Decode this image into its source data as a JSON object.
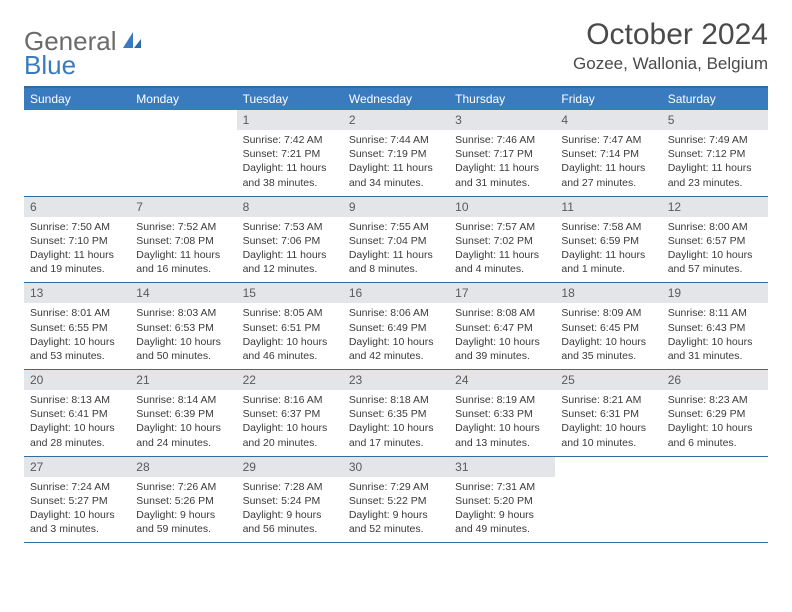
{
  "logo": {
    "text_general": "General",
    "text_blue": "Blue"
  },
  "header": {
    "month_year": "October 2024",
    "location": "Gozee, Wallonia, Belgium"
  },
  "colors": {
    "header_bar": "#3a7bbf",
    "accent_border": "#2e6da4",
    "daynum_bg": "#e3e5e8",
    "text_dark": "#3a3a3a",
    "text_mid": "#5a5a5a",
    "text_logo_gray": "#6b6b6b"
  },
  "weekdays": [
    "Sunday",
    "Monday",
    "Tuesday",
    "Wednesday",
    "Thursday",
    "Friday",
    "Saturday"
  ],
  "weeks": [
    [
      {
        "empty": true
      },
      {
        "empty": true
      },
      {
        "num": "1",
        "sunrise": "7:42 AM",
        "sunset": "7:21 PM",
        "daylight": "11 hours and 38 minutes."
      },
      {
        "num": "2",
        "sunrise": "7:44 AM",
        "sunset": "7:19 PM",
        "daylight": "11 hours and 34 minutes."
      },
      {
        "num": "3",
        "sunrise": "7:46 AM",
        "sunset": "7:17 PM",
        "daylight": "11 hours and 31 minutes."
      },
      {
        "num": "4",
        "sunrise": "7:47 AM",
        "sunset": "7:14 PM",
        "daylight": "11 hours and 27 minutes."
      },
      {
        "num": "5",
        "sunrise": "7:49 AM",
        "sunset": "7:12 PM",
        "daylight": "11 hours and 23 minutes."
      }
    ],
    [
      {
        "num": "6",
        "sunrise": "7:50 AM",
        "sunset": "7:10 PM",
        "daylight": "11 hours and 19 minutes."
      },
      {
        "num": "7",
        "sunrise": "7:52 AM",
        "sunset": "7:08 PM",
        "daylight": "11 hours and 16 minutes."
      },
      {
        "num": "8",
        "sunrise": "7:53 AM",
        "sunset": "7:06 PM",
        "daylight": "11 hours and 12 minutes."
      },
      {
        "num": "9",
        "sunrise": "7:55 AM",
        "sunset": "7:04 PM",
        "daylight": "11 hours and 8 minutes."
      },
      {
        "num": "10",
        "sunrise": "7:57 AM",
        "sunset": "7:02 PM",
        "daylight": "11 hours and 4 minutes."
      },
      {
        "num": "11",
        "sunrise": "7:58 AM",
        "sunset": "6:59 PM",
        "daylight": "11 hours and 1 minute."
      },
      {
        "num": "12",
        "sunrise": "8:00 AM",
        "sunset": "6:57 PM",
        "daylight": "10 hours and 57 minutes."
      }
    ],
    [
      {
        "num": "13",
        "sunrise": "8:01 AM",
        "sunset": "6:55 PM",
        "daylight": "10 hours and 53 minutes."
      },
      {
        "num": "14",
        "sunrise": "8:03 AM",
        "sunset": "6:53 PM",
        "daylight": "10 hours and 50 minutes."
      },
      {
        "num": "15",
        "sunrise": "8:05 AM",
        "sunset": "6:51 PM",
        "daylight": "10 hours and 46 minutes."
      },
      {
        "num": "16",
        "sunrise": "8:06 AM",
        "sunset": "6:49 PM",
        "daylight": "10 hours and 42 minutes."
      },
      {
        "num": "17",
        "sunrise": "8:08 AM",
        "sunset": "6:47 PM",
        "daylight": "10 hours and 39 minutes."
      },
      {
        "num": "18",
        "sunrise": "8:09 AM",
        "sunset": "6:45 PM",
        "daylight": "10 hours and 35 minutes."
      },
      {
        "num": "19",
        "sunrise": "8:11 AM",
        "sunset": "6:43 PM",
        "daylight": "10 hours and 31 minutes."
      }
    ],
    [
      {
        "num": "20",
        "sunrise": "8:13 AM",
        "sunset": "6:41 PM",
        "daylight": "10 hours and 28 minutes."
      },
      {
        "num": "21",
        "sunrise": "8:14 AM",
        "sunset": "6:39 PM",
        "daylight": "10 hours and 24 minutes."
      },
      {
        "num": "22",
        "sunrise": "8:16 AM",
        "sunset": "6:37 PM",
        "daylight": "10 hours and 20 minutes."
      },
      {
        "num": "23",
        "sunrise": "8:18 AM",
        "sunset": "6:35 PM",
        "daylight": "10 hours and 17 minutes."
      },
      {
        "num": "24",
        "sunrise": "8:19 AM",
        "sunset": "6:33 PM",
        "daylight": "10 hours and 13 minutes."
      },
      {
        "num": "25",
        "sunrise": "8:21 AM",
        "sunset": "6:31 PM",
        "daylight": "10 hours and 10 minutes."
      },
      {
        "num": "26",
        "sunrise": "8:23 AM",
        "sunset": "6:29 PM",
        "daylight": "10 hours and 6 minutes."
      }
    ],
    [
      {
        "num": "27",
        "sunrise": "7:24 AM",
        "sunset": "5:27 PM",
        "daylight": "10 hours and 3 minutes."
      },
      {
        "num": "28",
        "sunrise": "7:26 AM",
        "sunset": "5:26 PM",
        "daylight": "9 hours and 59 minutes."
      },
      {
        "num": "29",
        "sunrise": "7:28 AM",
        "sunset": "5:24 PM",
        "daylight": "9 hours and 56 minutes."
      },
      {
        "num": "30",
        "sunrise": "7:29 AM",
        "sunset": "5:22 PM",
        "daylight": "9 hours and 52 minutes."
      },
      {
        "num": "31",
        "sunrise": "7:31 AM",
        "sunset": "5:20 PM",
        "daylight": "9 hours and 49 minutes."
      },
      {
        "empty": true
      },
      {
        "empty": true
      }
    ]
  ],
  "labels": {
    "sunrise_prefix": "Sunrise: ",
    "sunset_prefix": "Sunset: ",
    "daylight_prefix": "Daylight: "
  }
}
